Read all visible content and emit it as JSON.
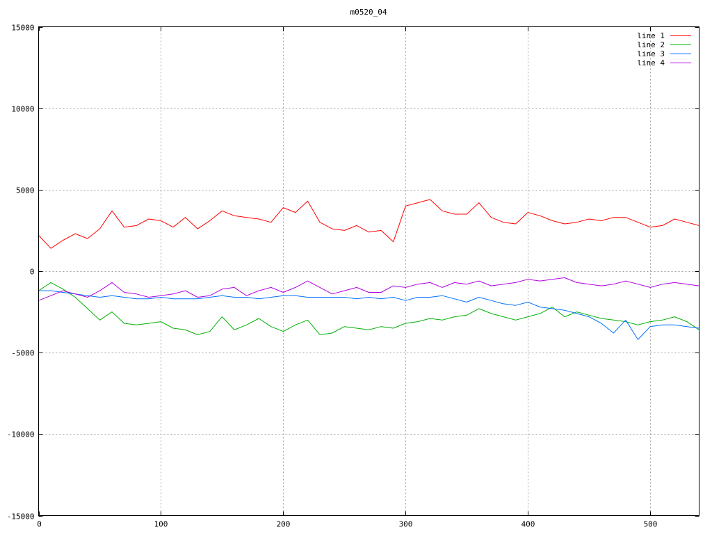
{
  "chart_data": {
    "type": "line",
    "title": "m0520_04",
    "xlabel": "",
    "ylabel": "",
    "xlim": [
      0,
      540
    ],
    "ylim": [
      -15000,
      15000
    ],
    "xticks": [
      0,
      100,
      200,
      300,
      400,
      500
    ],
    "yticks": [
      -15000,
      -10000,
      -5000,
      0,
      5000,
      10000,
      15000
    ],
    "grid": true,
    "legend_position": "top-right",
    "x": [
      0,
      10,
      20,
      30,
      40,
      50,
      60,
      70,
      80,
      90,
      100,
      110,
      120,
      130,
      140,
      150,
      160,
      170,
      180,
      190,
      200,
      210,
      220,
      230,
      240,
      250,
      260,
      270,
      280,
      290,
      300,
      310,
      320,
      330,
      340,
      350,
      360,
      370,
      380,
      390,
      400,
      410,
      420,
      430,
      440,
      450,
      460,
      470,
      480,
      490,
      500,
      510,
      520,
      530,
      540
    ],
    "series": [
      {
        "name": "line 1",
        "color": "#ff0000",
        "values": [
          2200,
          1400,
          1900,
          2300,
          2000,
          2600,
          3700,
          2700,
          2800,
          3200,
          3100,
          2700,
          3300,
          2600,
          3100,
          3700,
          3400,
          3300,
          3200,
          3000,
          3900,
          3600,
          4300,
          3000,
          2600,
          2500,
          2800,
          2400,
          2500,
          1800,
          4000,
          4200,
          4400,
          3700,
          3500,
          3500,
          4200,
          3300,
          3000,
          2900,
          3600,
          3400,
          3100,
          2900,
          3000,
          3200,
          3100,
          3300,
          3300,
          3000,
          2700,
          2800,
          3200,
          3000,
          2800
        ]
      },
      {
        "name": "line 2",
        "color": "#00b000",
        "values": [
          -1200,
          -700,
          -1100,
          -1600,
          -2300,
          -3000,
          -2500,
          -3200,
          -3300,
          -3200,
          -3100,
          -3500,
          -3600,
          -3900,
          -3700,
          -2800,
          -3600,
          -3300,
          -2900,
          -3400,
          -3700,
          -3300,
          -3000,
          -3900,
          -3800,
          -3400,
          -3500,
          -3600,
          -3400,
          -3500,
          -3200,
          -3100,
          -2900,
          -3000,
          -2800,
          -2700,
          -2300,
          -2600,
          -2800,
          -3000,
          -2800,
          -2600,
          -2200,
          -2800,
          -2500,
          -2700,
          -2900,
          -3000,
          -3100,
          -3300,
          -3100,
          -3000,
          -2800,
          -3100,
          -3600
        ]
      },
      {
        "name": "line 3",
        "color": "#0070ff",
        "values": [
          -1200,
          -1200,
          -1300,
          -1400,
          -1500,
          -1600,
          -1500,
          -1600,
          -1700,
          -1700,
          -1600,
          -1700,
          -1700,
          -1700,
          -1600,
          -1500,
          -1600,
          -1600,
          -1700,
          -1600,
          -1500,
          -1500,
          -1600,
          -1600,
          -1600,
          -1600,
          -1700,
          -1600,
          -1700,
          -1600,
          -1800,
          -1600,
          -1600,
          -1500,
          -1700,
          -1900,
          -1600,
          -1800,
          -2000,
          -2100,
          -1900,
          -2200,
          -2300,
          -2400,
          -2600,
          -2800,
          -3200,
          -3800,
          -3000,
          -4200,
          -3400,
          -3300,
          -3300,
          -3400,
          -3500
        ]
      },
      {
        "name": "line 4",
        "color": "#b000e0",
        "values": [
          -1800,
          -1500,
          -1200,
          -1400,
          -1600,
          -1200,
          -700,
          -1300,
          -1400,
          -1600,
          -1500,
          -1400,
          -1200,
          -1600,
          -1500,
          -1100,
          -1000,
          -1500,
          -1200,
          -1000,
          -1300,
          -1000,
          -600,
          -1000,
          -1400,
          -1200,
          -1000,
          -1300,
          -1300,
          -900,
          -1000,
          -800,
          -700,
          -1000,
          -700,
          -800,
          -600,
          -900,
          -800,
          -700,
          -500,
          -600,
          -500,
          -400,
          -700,
          -800,
          -900,
          -800,
          -600,
          -800,
          -1000,
          -800,
          -700,
          -800,
          -900
        ]
      }
    ]
  }
}
